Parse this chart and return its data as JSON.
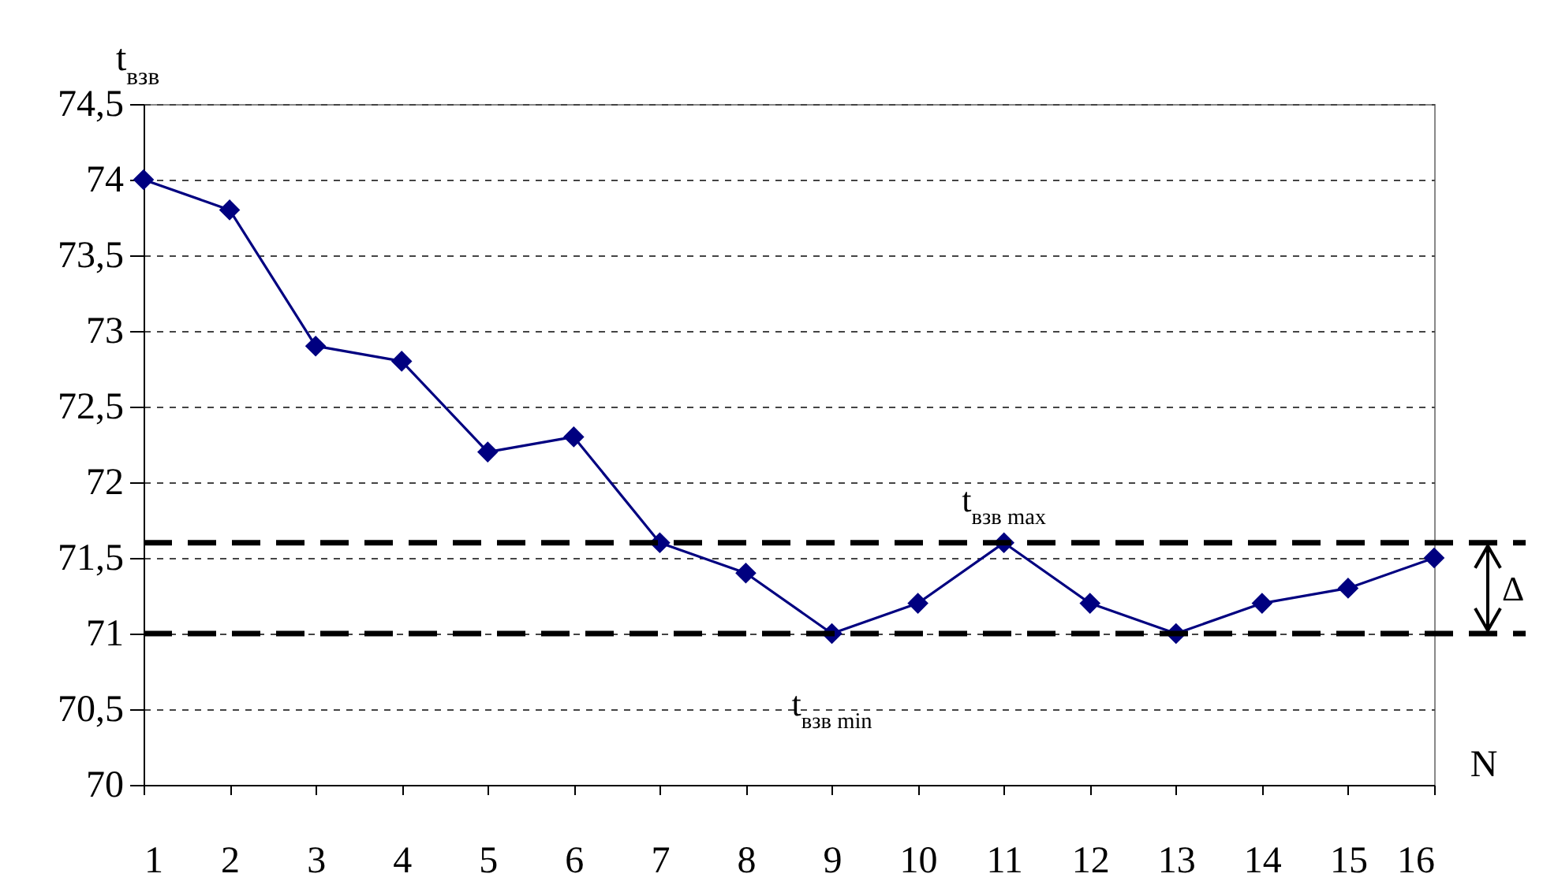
{
  "chart_data": {
    "type": "line",
    "xlabel": "N",
    "ylabel": "t$_{взв}$",
    "x": [
      1,
      2,
      3,
      4,
      5,
      6,
      7,
      8,
      9,
      10,
      11,
      12,
      13,
      14,
      15,
      16
    ],
    "series": [
      {
        "color": "#000080",
        "values": [
          74,
          73.8,
          72.9,
          72.8,
          72.2,
          72.3,
          71.6,
          71.4,
          71,
          71.2,
          71.6,
          71.2,
          71,
          71.2,
          71.3,
          71.5
        ]
      }
    ],
    "xlim": [
      1,
      16
    ],
    "xticks": [
      1,
      2,
      3,
      4,
      5,
      6,
      7,
      8,
      9,
      10,
      11,
      12,
      13,
      14,
      15,
      16
    ],
    "ylim": [
      70,
      74.5
    ],
    "yticks": [
      70,
      {
        "value": 70.5,
        "label": "70,5"
      },
      71,
      {
        "value": 71.5,
        "label": "71,5"
      },
      72,
      {
        "value": 72.5,
        "label": "72,5"
      },
      73,
      {
        "value": 73.5,
        "label": "73,5"
      },
      74,
      {
        "value": 74.5,
        "label": "74,5"
      }
    ],
    "grid": "y",
    "marker": "diamond",
    "line_style": "solid",
    "ref_lines": [
      {
        "axis": "y",
        "value": 71.6,
        "label": "t$_{взв max}$",
        "color": "#000000",
        "line_style": "dashed"
      },
      {
        "axis": "y",
        "value": 71,
        "label": "t$_{взв min}$",
        "color": "#000000",
        "line_style": "dashed"
      }
    ],
    "annotations": [
      "Δ"
    ]
  }
}
